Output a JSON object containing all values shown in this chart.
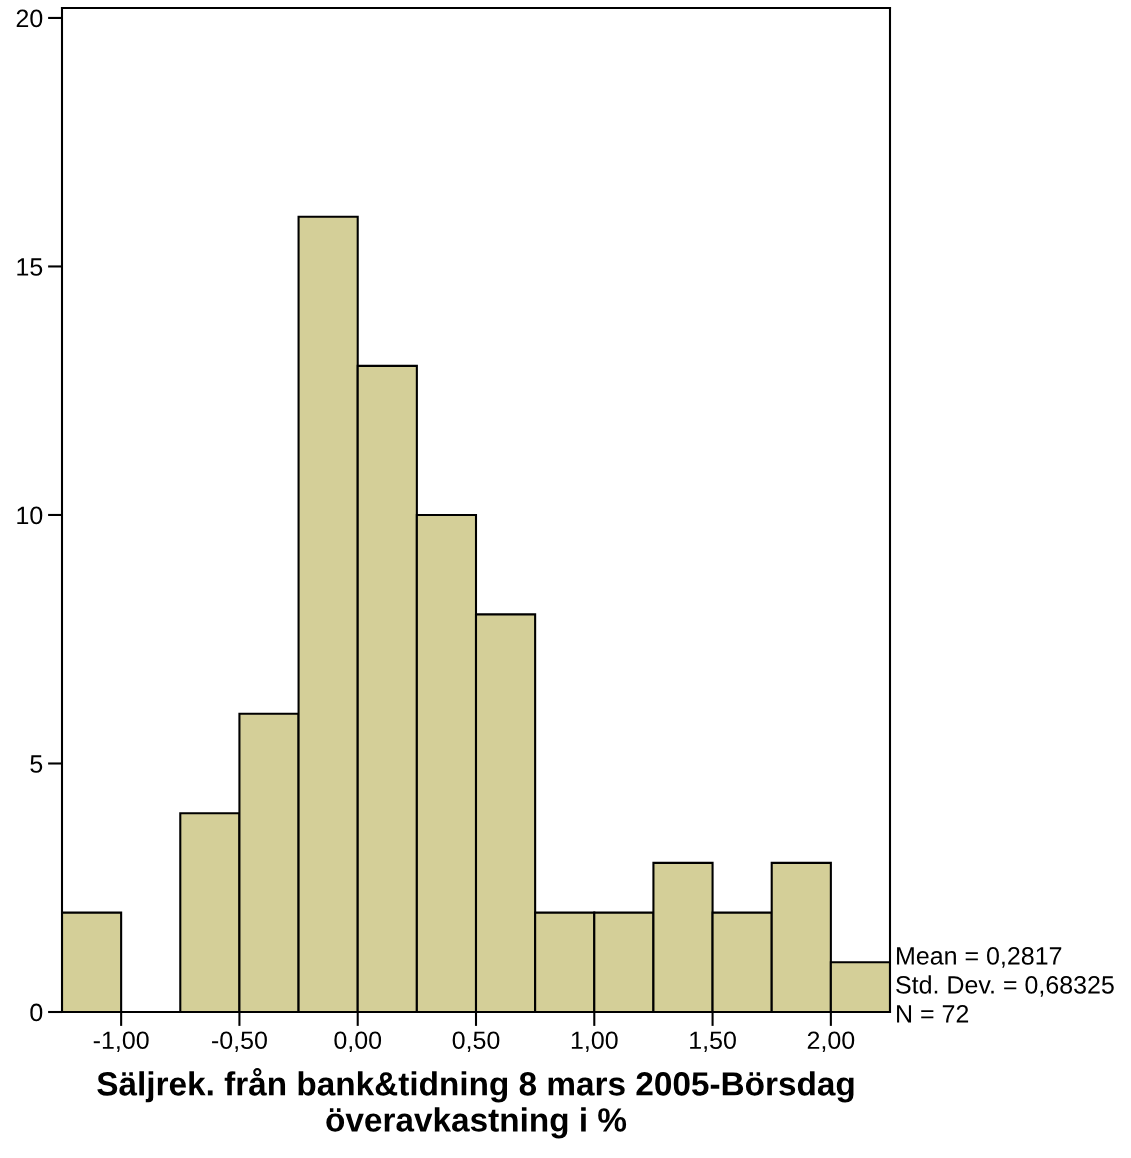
{
  "chart_data": {
    "type": "histogram",
    "xlabel": "Säljrek. från bank&tidning 8 mars 2005-Börsdag\növeravkastning i %",
    "bins": [
      -1.25,
      -1.0,
      -0.75,
      -0.5,
      -0.25,
      0.0,
      0.25,
      0.5,
      0.75,
      1.0,
      1.25,
      1.5,
      1.75,
      2.0,
      2.25
    ],
    "values": [
      2,
      0,
      4,
      6,
      16,
      13,
      10,
      8,
      2,
      2,
      3,
      2,
      3,
      1
    ],
    "color": "#d4cf98",
    "xlim": [
      -1.25,
      2.25
    ],
    "xticks": [
      {
        "value": -1.0,
        "label": "-1,00"
      },
      {
        "value": -0.5,
        "label": "-0,50"
      },
      {
        "value": 0.0,
        "label": "0,00"
      },
      {
        "value": 0.5,
        "label": "0,50"
      },
      {
        "value": 1.0,
        "label": "1,00"
      },
      {
        "value": 1.5,
        "label": "1,50"
      },
      {
        "value": 2.0,
        "label": "2,00"
      }
    ],
    "ylim": [
      0,
      20.2
    ],
    "yticks": [
      0,
      5,
      10,
      15,
      20
    ],
    "grid": false,
    "annotations": [
      "Mean = 0,2817",
      "Std. Dev. = 0,68325",
      "N = 72"
    ]
  }
}
